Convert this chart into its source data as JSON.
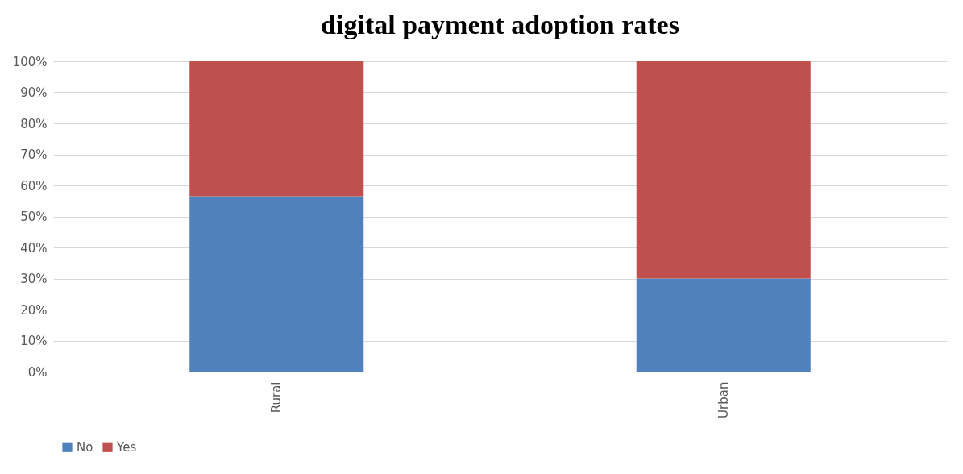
{
  "chart_data": {
    "type": "bar",
    "title": "digital payment adoption rates",
    "categories": [
      "Rural",
      "Urban"
    ],
    "series": [
      {
        "name": "No",
        "color": "#4f81bd",
        "values": [
          56.5,
          30
        ]
      },
      {
        "name": "Yes",
        "color": "#c0504d",
        "values": [
          43.5,
          70
        ]
      }
    ],
    "stacked": true,
    "ylim": [
      0,
      100
    ],
    "yticks": [
      {
        "value": 0,
        "label": "0%"
      },
      {
        "value": 10,
        "label": "10%"
      },
      {
        "value": 20,
        "label": "20%"
      },
      {
        "value": 30,
        "label": "30%"
      },
      {
        "value": 40,
        "label": "40%"
      },
      {
        "value": 50,
        "label": "50%"
      },
      {
        "value": 60,
        "label": "60%"
      },
      {
        "value": 70,
        "label": "70%"
      },
      {
        "value": 80,
        "label": "80%"
      },
      {
        "value": 90,
        "label": "90%"
      },
      {
        "value": 100,
        "label": "100%"
      }
    ],
    "grid": "y",
    "legend": "bottom"
  }
}
